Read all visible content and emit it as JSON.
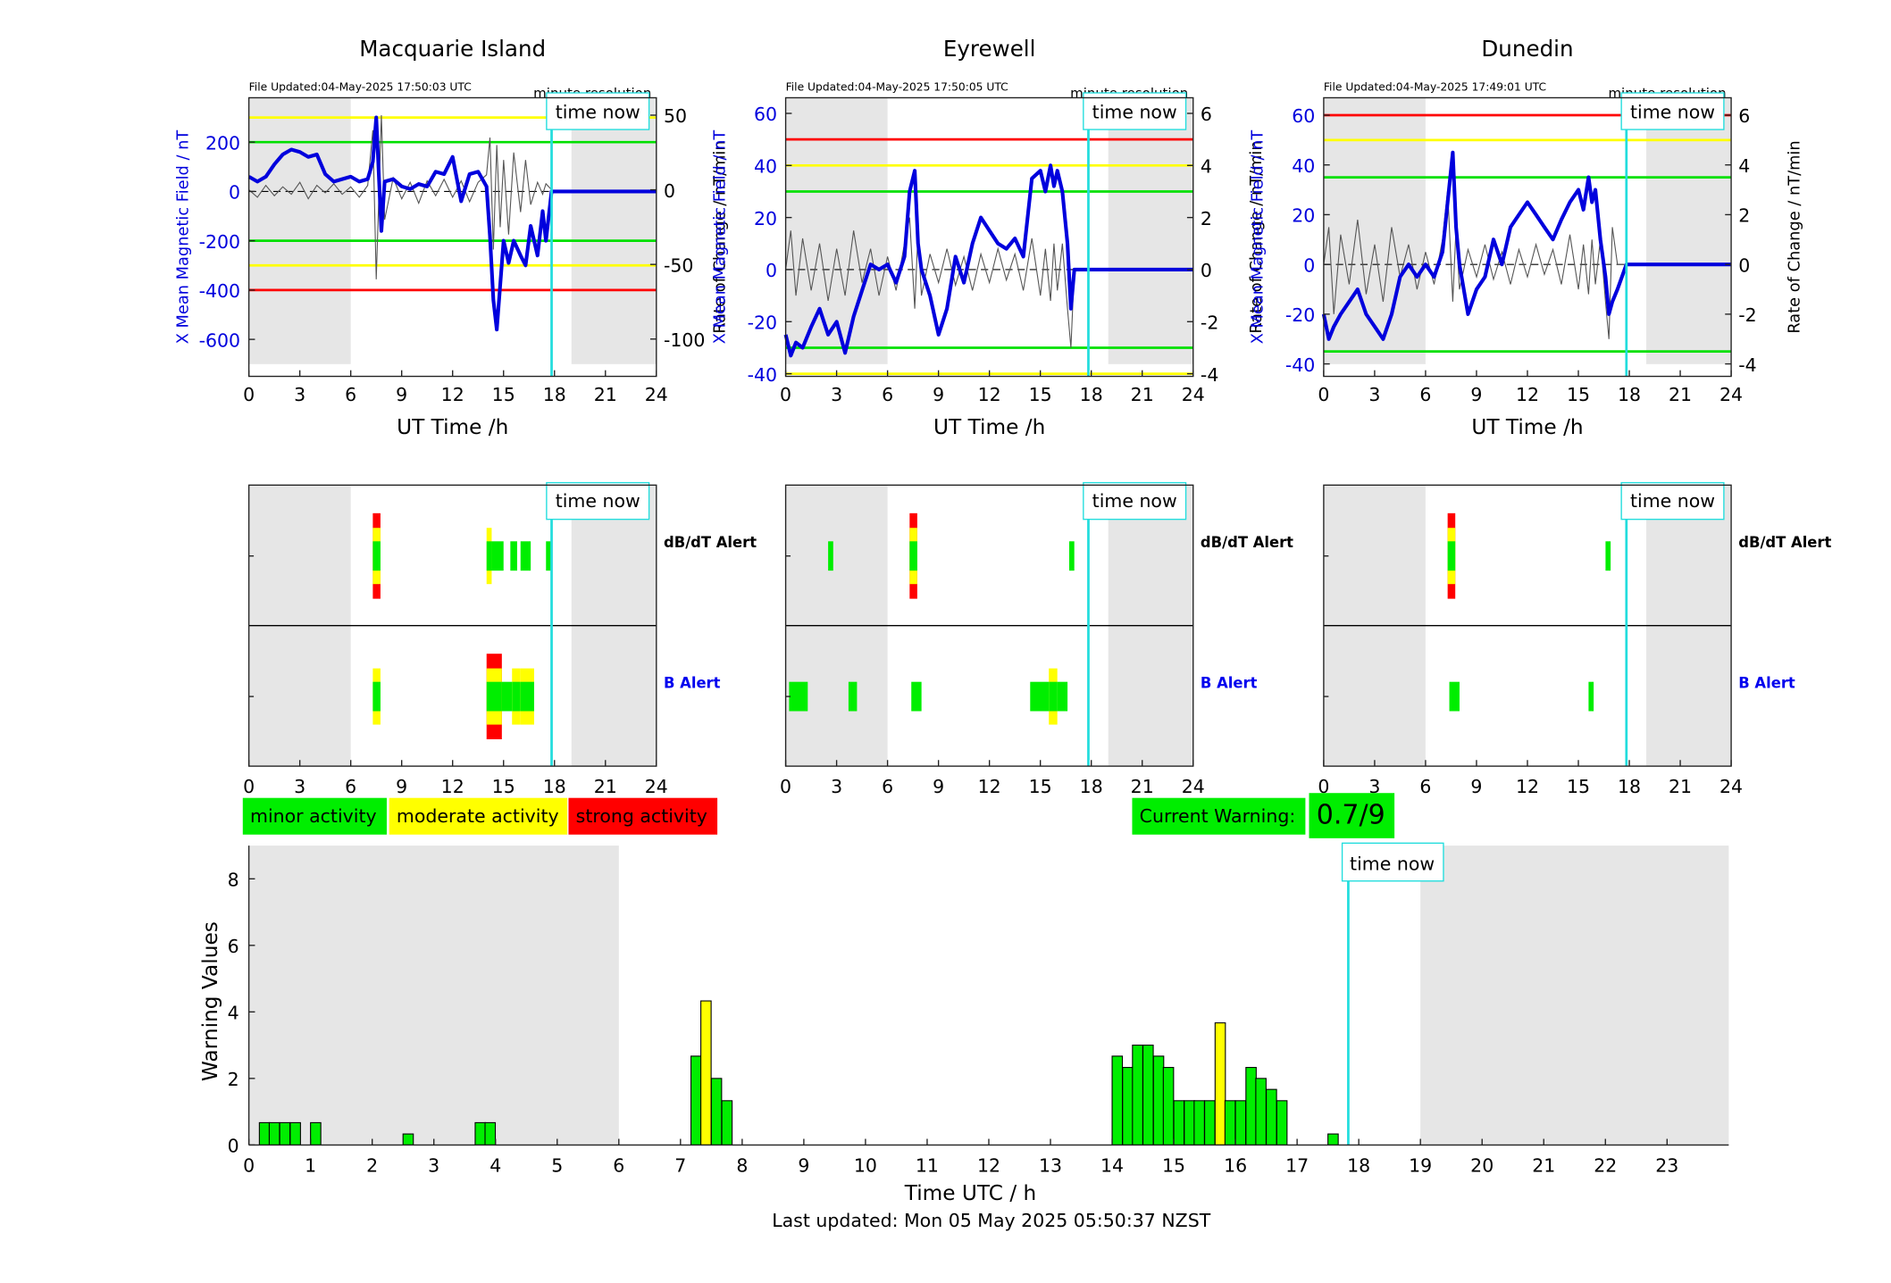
{
  "stations": [
    {
      "name": "Macquarie Island",
      "file_updated": "File Updated:04-May-2025 17:50:03 UTC",
      "resolution": "minute resolution",
      "left_ylabel": "X Mean Magnetic Field / nT",
      "right_ylabel": "Rate of Change / nT/min",
      "ylim_left": [
        -750,
        380
      ],
      "yticks_left": [
        -600,
        -400,
        -200,
        0,
        200
      ],
      "ylim_right": [
        -125,
        61.67
      ],
      "yticks_right": [
        -100,
        -50,
        0,
        50
      ],
      "thresholds": [
        {
          "value": 300,
          "color": "#ffff00"
        },
        {
          "value": 200,
          "color": "#00e000"
        },
        {
          "value": -200,
          "color": "#00e000"
        },
        {
          "value": -300,
          "color": "#ffff00"
        },
        {
          "value": -400,
          "color": "#ff0000"
        }
      ],
      "x_hours": [
        0,
        0.5,
        1,
        1.5,
        2,
        2.5,
        3,
        3.5,
        4,
        4.5,
        5,
        5.5,
        6,
        6.5,
        7,
        7.3,
        7.5,
        7.8,
        8,
        8.5,
        9,
        9.5,
        10,
        10.5,
        11,
        11.5,
        12,
        12.5,
        13,
        13.5,
        14,
        14.2,
        14.4,
        14.6,
        14.8,
        15,
        15.3,
        15.6,
        16,
        16.3,
        16.6,
        17,
        17.3,
        17.5,
        17.83,
        24
      ],
      "x_values": [
        60,
        40,
        60,
        110,
        150,
        170,
        160,
        140,
        150,
        70,
        40,
        50,
        60,
        40,
        50,
        120,
        300,
        -160,
        40,
        50,
        20,
        10,
        30,
        20,
        80,
        70,
        140,
        -40,
        70,
        80,
        20,
        -180,
        -440,
        -560,
        -380,
        -200,
        -290,
        -200,
        -260,
        -300,
        -140,
        -260,
        -80,
        -200,
        0,
        0
      ],
      "dbdt_values": [
        0,
        -5,
        3,
        -4,
        2,
        -3,
        5,
        -6,
        3,
        -2,
        4,
        -3,
        2,
        -5,
        3,
        40,
        -60,
        50,
        -20,
        8,
        -6,
        5,
        -9,
        6,
        -4,
        7,
        -5,
        6,
        -8,
        5,
        10,
        35,
        -40,
        30,
        -25,
        20,
        -30,
        25,
        -15,
        20,
        -10,
        5,
        -3,
        4,
        0,
        0
      ],
      "dbdt_alert": [
        {
          "start": 7.3,
          "end": 7.75,
          "levels": [
            "red",
            "yellow",
            "green"
          ]
        },
        {
          "start": 14.0,
          "end": 14.3,
          "levels": [
            "yellow",
            "green"
          ]
        },
        {
          "start": 14.3,
          "end": 15.0,
          "levels": [
            "green"
          ]
        },
        {
          "start": 15.4,
          "end": 15.8,
          "levels": [
            "green"
          ]
        },
        {
          "start": 16.0,
          "end": 16.6,
          "levels": [
            "green"
          ]
        },
        {
          "start": 17.5,
          "end": 17.8,
          "levels": [
            "green"
          ]
        }
      ],
      "b_alert": [
        {
          "start": 7.3,
          "end": 7.75,
          "levels": [
            "yellow",
            "green"
          ]
        },
        {
          "start": 14.0,
          "end": 14.9,
          "levels": [
            "red",
            "yellow",
            "green"
          ]
        },
        {
          "start": 14.9,
          "end": 15.5,
          "levels": [
            "green"
          ]
        },
        {
          "start": 15.5,
          "end": 16.0,
          "levels": [
            "yellow",
            "green"
          ]
        },
        {
          "start": 16.0,
          "end": 16.8,
          "levels": [
            "yellow",
            "green"
          ]
        }
      ]
    },
    {
      "name": "Eyrewell",
      "file_updated": "File Updated:04-May-2025 17:50:05 UTC",
      "resolution": "minute resolution",
      "left_ylabel": "X Mean Magnetic Field / nT",
      "right_ylabel": "Rate of Change / nT/min",
      "ylim_left": [
        -41,
        66
      ],
      "yticks_left": [
        -40,
        -20,
        0,
        20,
        40,
        60
      ],
      "ylim_right": [
        -4.1,
        6.6
      ],
      "yticks_right": [
        -4,
        -2,
        0,
        2,
        4,
        6
      ],
      "thresholds": [
        {
          "value": 50,
          "color": "#ff0000"
        },
        {
          "value": 40,
          "color": "#ffff00"
        },
        {
          "value": 30,
          "color": "#00e000"
        },
        {
          "value": -30,
          "color": "#00e000"
        },
        {
          "value": -40,
          "color": "#ffff00"
        }
      ],
      "x_hours": [
        0,
        0.3,
        0.6,
        1,
        1.5,
        2,
        2.5,
        3,
        3.5,
        4,
        4.5,
        5,
        5.5,
        6,
        6.5,
        7,
        7.3,
        7.6,
        7.8,
        8,
        8.5,
        9,
        9.5,
        10,
        10.5,
        11,
        11.5,
        12,
        12.5,
        13,
        13.5,
        14,
        14.5,
        15,
        15.3,
        15.6,
        15.8,
        16,
        16.3,
        16.6,
        16.8,
        17.0,
        17.83,
        24
      ],
      "x_values": [
        -25,
        -33,
        -28,
        -30,
        -22,
        -15,
        -25,
        -20,
        -32,
        -18,
        -8,
        2,
        0,
        2,
        -5,
        5,
        30,
        38,
        10,
        0,
        -10,
        -25,
        -15,
        5,
        -5,
        10,
        20,
        15,
        10,
        8,
        12,
        5,
        35,
        38,
        30,
        40,
        32,
        38,
        30,
        10,
        -15,
        0,
        0,
        0
      ],
      "dbdt_values": [
        0,
        1.5,
        -1,
        1.2,
        -0.8,
        1,
        -1.2,
        0.8,
        -1,
        1.5,
        -0.5,
        0.8,
        -1,
        0.5,
        -0.8,
        1,
        2,
        -1.5,
        1.5,
        -1,
        0.6,
        -0.5,
        0.8,
        -0.6,
        0.5,
        -0.8,
        0.6,
        -0.5,
        0.8,
        -0.4,
        0.6,
        -0.8,
        1.2,
        -1,
        0.8,
        -1.2,
        1,
        -0.8,
        1,
        -1.5,
        -3,
        0,
        0,
        0
      ],
      "dbdt_alert": [
        {
          "start": 2.5,
          "end": 2.8,
          "levels": [
            "green"
          ]
        },
        {
          "start": 7.3,
          "end": 7.75,
          "levels": [
            "red",
            "yellow",
            "green"
          ]
        },
        {
          "start": 16.7,
          "end": 17.0,
          "levels": [
            "green"
          ]
        }
      ],
      "b_alert": [
        {
          "start": 0.2,
          "end": 1.3,
          "levels": [
            "green"
          ]
        },
        {
          "start": 3.7,
          "end": 4.2,
          "levels": [
            "green"
          ]
        },
        {
          "start": 7.4,
          "end": 8.0,
          "levels": [
            "green"
          ]
        },
        {
          "start": 14.4,
          "end": 15.5,
          "levels": [
            "green"
          ]
        },
        {
          "start": 15.5,
          "end": 16.0,
          "levels": [
            "yellow",
            "green"
          ]
        },
        {
          "start": 16.0,
          "end": 16.6,
          "levels": [
            "green"
          ]
        }
      ]
    },
    {
      "name": "Dunedin",
      "file_updated": "File Updated:04-May-2025 17:49:01 UTC",
      "resolution": "minute resolution",
      "left_ylabel": "X Mean Magnetic Field / nT",
      "right_ylabel": "Rate of Change / nT/min",
      "ylim_left": [
        -45,
        67
      ],
      "yticks_left": [
        -40,
        -20,
        0,
        20,
        40,
        60
      ],
      "ylim_right": [
        -4.5,
        6.7
      ],
      "yticks_right": [
        -4,
        -2,
        0,
        2,
        4,
        6
      ],
      "thresholds": [
        {
          "value": 60,
          "color": "#ff0000"
        },
        {
          "value": 50,
          "color": "#ffff00"
        },
        {
          "value": 35,
          "color": "#00e000"
        },
        {
          "value": -35,
          "color": "#00e000"
        }
      ],
      "x_hours": [
        0,
        0.3,
        0.6,
        1,
        1.5,
        2,
        2.5,
        3,
        3.5,
        4,
        4.5,
        5,
        5.5,
        6,
        6.5,
        7,
        7.3,
        7.6,
        7.8,
        8,
        8.5,
        9,
        9.5,
        10,
        10.5,
        11,
        11.5,
        12,
        12.5,
        13,
        13.5,
        14,
        14.5,
        15,
        15.3,
        15.6,
        15.8,
        16,
        16.3,
        16.6,
        16.8,
        17.0,
        17.3,
        17.83,
        24
      ],
      "x_values": [
        -20,
        -30,
        -25,
        -20,
        -15,
        -10,
        -20,
        -25,
        -30,
        -20,
        -5,
        0,
        -5,
        0,
        -5,
        5,
        25,
        45,
        15,
        0,
        -20,
        -10,
        -5,
        10,
        0,
        15,
        20,
        25,
        20,
        15,
        10,
        18,
        25,
        30,
        22,
        35,
        25,
        30,
        10,
        -5,
        -20,
        -15,
        -10,
        0,
        0
      ],
      "dbdt_values": [
        0,
        1.5,
        -2,
        1.2,
        -0.8,
        1.8,
        -1.2,
        0.8,
        -1.5,
        1.5,
        -0.5,
        0.8,
        -1,
        0.5,
        -0.8,
        1,
        3,
        -1.5,
        1.5,
        -1,
        0.6,
        -0.5,
        0.8,
        -0.6,
        0.5,
        -0.8,
        0.6,
        -0.5,
        0.8,
        -0.4,
        0.6,
        -0.8,
        1.2,
        -1,
        0.8,
        -1.2,
        1,
        -0.8,
        1,
        -1.5,
        -3,
        1.5,
        0,
        0,
        0
      ],
      "dbdt_alert": [
        {
          "start": 7.3,
          "end": 7.75,
          "levels": [
            "red",
            "yellow",
            "green"
          ]
        },
        {
          "start": 16.6,
          "end": 16.9,
          "levels": [
            "green"
          ]
        }
      ],
      "b_alert": [
        {
          "start": 7.4,
          "end": 8.0,
          "levels": [
            "green"
          ]
        },
        {
          "start": 15.6,
          "end": 15.9,
          "levels": [
            "green"
          ]
        }
      ]
    }
  ],
  "common": {
    "xlabel": "UT Time /h",
    "xticks": [
      0,
      3,
      6,
      9,
      12,
      15,
      18,
      21,
      24
    ],
    "time_now_label": "time now",
    "time_now_hour": 17.83,
    "night_shade": [
      [
        0,
        6
      ],
      [
        19,
        24
      ]
    ],
    "dbdt_alert_label": "dB/dT Alert",
    "b_alert_label": "B Alert"
  },
  "legend": {
    "minor": "minor activity",
    "moderate": "moderate activity",
    "strong": "strong activity",
    "current_warning_label": "Current Warning:",
    "current_warning_value": "0.7/9",
    "colors": {
      "minor": "#00ee00",
      "moderate": "#ffff00",
      "strong": "#ff0000"
    }
  },
  "chart_data": {
    "type": "bar",
    "xlabel": "Time UTC / h",
    "ylabel": "Warning Values",
    "ylim": [
      0,
      9
    ],
    "xlim": [
      0,
      24
    ],
    "xticks": [
      0,
      1,
      2,
      3,
      4,
      5,
      6,
      7,
      8,
      9,
      10,
      11,
      12,
      13,
      14,
      15,
      16,
      17,
      18,
      19,
      20,
      21,
      22,
      23
    ],
    "yticks": [
      0,
      2,
      4,
      6,
      8
    ],
    "bin_width_h": 0.1667,
    "bars": [
      {
        "x": 0.17,
        "value": 0.67,
        "color": "green"
      },
      {
        "x": 0.33,
        "value": 0.67,
        "color": "green"
      },
      {
        "x": 0.5,
        "value": 0.67,
        "color": "green"
      },
      {
        "x": 0.67,
        "value": 0.67,
        "color": "green"
      },
      {
        "x": 1.0,
        "value": 0.67,
        "color": "green"
      },
      {
        "x": 2.5,
        "value": 0.33,
        "color": "green"
      },
      {
        "x": 3.67,
        "value": 0.67,
        "color": "green"
      },
      {
        "x": 3.83,
        "value": 0.67,
        "color": "green"
      },
      {
        "x": 7.17,
        "value": 2.67,
        "color": "green"
      },
      {
        "x": 7.33,
        "value": 4.33,
        "color": "yellow"
      },
      {
        "x": 7.5,
        "value": 2.0,
        "color": "green"
      },
      {
        "x": 7.67,
        "value": 1.33,
        "color": "green"
      },
      {
        "x": 14.0,
        "value": 2.67,
        "color": "green"
      },
      {
        "x": 14.17,
        "value": 2.33,
        "color": "green"
      },
      {
        "x": 14.33,
        "value": 3.0,
        "color": "green"
      },
      {
        "x": 14.5,
        "value": 3.0,
        "color": "green"
      },
      {
        "x": 14.67,
        "value": 2.67,
        "color": "green"
      },
      {
        "x": 14.83,
        "value": 2.33,
        "color": "green"
      },
      {
        "x": 15.0,
        "value": 1.33,
        "color": "green"
      },
      {
        "x": 15.17,
        "value": 1.33,
        "color": "green"
      },
      {
        "x": 15.33,
        "value": 1.33,
        "color": "green"
      },
      {
        "x": 15.5,
        "value": 1.33,
        "color": "green"
      },
      {
        "x": 15.67,
        "value": 3.67,
        "color": "yellow"
      },
      {
        "x": 15.83,
        "value": 1.33,
        "color": "green"
      },
      {
        "x": 16.0,
        "value": 1.33,
        "color": "green"
      },
      {
        "x": 16.17,
        "value": 2.33,
        "color": "green"
      },
      {
        "x": 16.33,
        "value": 2.0,
        "color": "green"
      },
      {
        "x": 16.5,
        "value": 1.67,
        "color": "green"
      },
      {
        "x": 16.67,
        "value": 1.33,
        "color": "green"
      },
      {
        "x": 17.5,
        "value": 0.33,
        "color": "green"
      }
    ],
    "time_now_hour": 17.83,
    "time_now_label": "time now",
    "night_shade": [
      [
        0,
        6
      ],
      [
        19,
        24
      ]
    ]
  },
  "footer": "Last updated: Mon 05 May 2025 05:50:37 NZST"
}
